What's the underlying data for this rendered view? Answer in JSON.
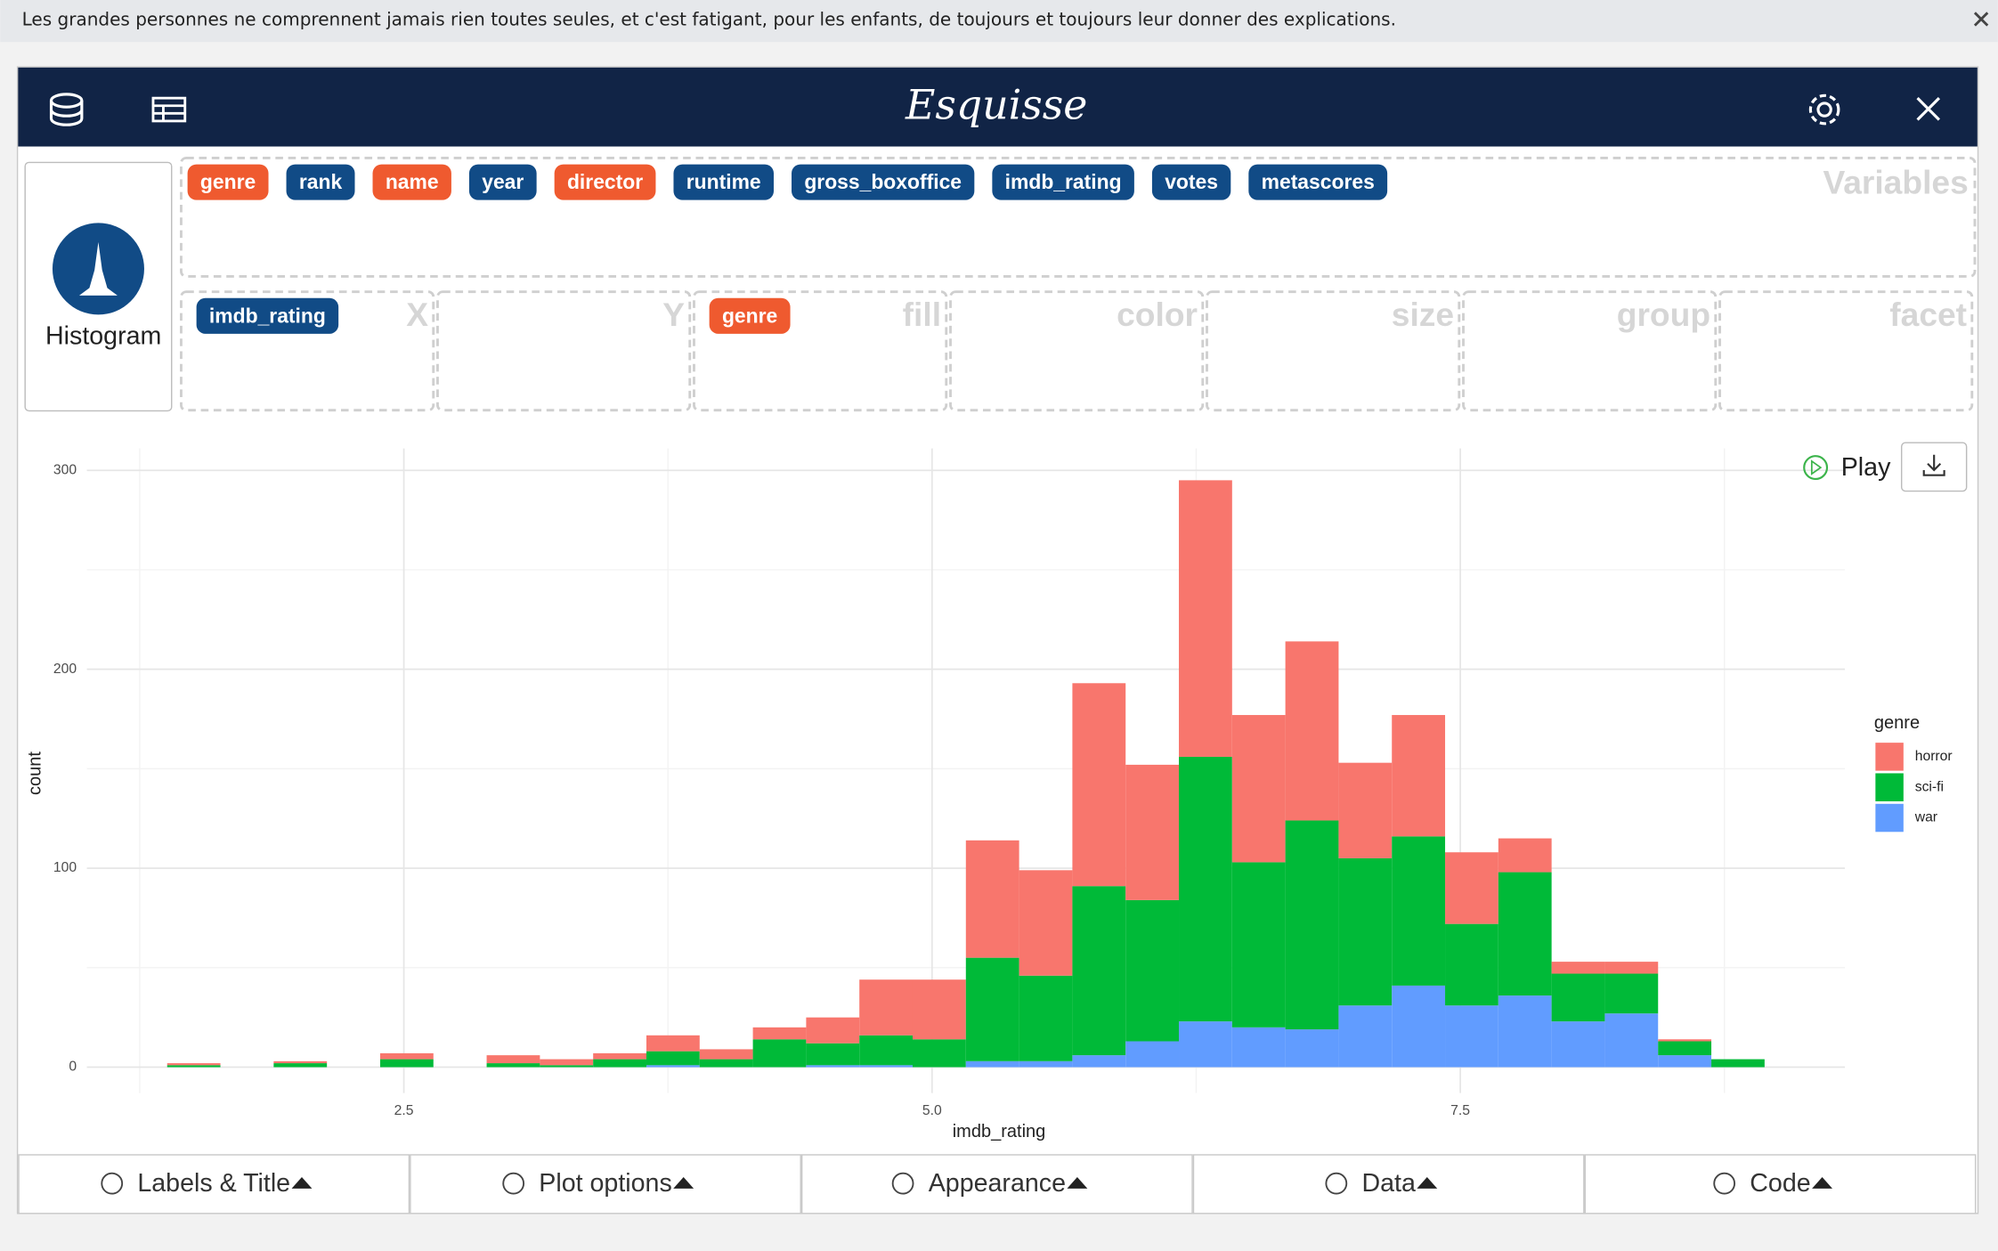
{
  "notification": "Les grandes personnes ne comprennent jamais rien toutes seules, et c'est fatigant, pour les enfants, de toujours et toujours leur donner des explications.",
  "header": {
    "title": "Esquisse"
  },
  "geom": "Histogram",
  "variables": {
    "label": "Variables",
    "items": [
      {
        "name": "genre",
        "color": "#ef5a2f"
      },
      {
        "name": "rank",
        "color": "#114b86"
      },
      {
        "name": "name",
        "color": "#ef5a2f"
      },
      {
        "name": "year",
        "color": "#114b86"
      },
      {
        "name": "director",
        "color": "#ef5a2f"
      },
      {
        "name": "runtime",
        "color": "#114b86"
      },
      {
        "name": "gross_boxoffice",
        "color": "#114b86"
      },
      {
        "name": "imdb_rating",
        "color": "#114b86"
      },
      {
        "name": "votes",
        "color": "#114b86"
      },
      {
        "name": "metascores",
        "color": "#114b86"
      }
    ]
  },
  "dropzones": [
    {
      "label": "X",
      "items": [
        {
          "name": "imdb_rating",
          "color": "#114b86"
        }
      ]
    },
    {
      "label": "Y",
      "items": []
    },
    {
      "label": "fill",
      "items": [
        {
          "name": "genre",
          "color": "#ef5a2f"
        }
      ]
    },
    {
      "label": "color",
      "items": []
    },
    {
      "label": "size",
      "items": []
    },
    {
      "label": "group",
      "items": []
    },
    {
      "label": "facet",
      "items": []
    }
  ],
  "play": "Play",
  "chart_data": {
    "type": "histogram",
    "xlabel": "imdb_rating",
    "ylabel": "count",
    "bins": [
      1.38,
      1.632,
      1.884,
      2.136,
      2.388,
      2.64,
      2.892,
      3.144,
      3.396,
      3.648,
      3.9,
      4.152,
      4.404,
      4.656,
      4.908,
      5.16,
      5.412,
      5.664,
      5.916,
      6.168,
      6.42,
      6.672,
      6.924,
      7.176,
      7.428,
      7.68,
      7.932,
      8.184,
      8.436,
      8.688,
      8.94
    ],
    "series": [
      {
        "name": "horror",
        "color": "#f8766d",
        "values": [
          1,
          0,
          1,
          0,
          3,
          0,
          4,
          3,
          3,
          8,
          5,
          6,
          13,
          28,
          30,
          59,
          53,
          102,
          68,
          139,
          74,
          90,
          48,
          61,
          36,
          17,
          6,
          6,
          1,
          0
        ]
      },
      {
        "name": "sci-fi",
        "color": "#00ba38",
        "values": [
          1,
          0,
          2,
          0,
          4,
          0,
          2,
          1,
          4,
          7,
          4,
          14,
          11,
          15,
          14,
          52,
          43,
          85,
          71,
          133,
          83,
          105,
          74,
          75,
          41,
          62,
          24,
          20,
          7,
          4
        ]
      },
      {
        "name": "war",
        "color": "#619cff",
        "values": [
          0,
          0,
          0,
          0,
          0,
          0,
          0,
          0,
          0,
          1,
          0,
          0,
          1,
          1,
          0,
          3,
          3,
          6,
          13,
          23,
          20,
          19,
          31,
          41,
          31,
          36,
          23,
          27,
          6,
          0
        ]
      }
    ],
    "xlim": [
      1.0,
      9.32
    ],
    "ylim": [
      -13,
      311
    ],
    "xticks": [
      2.5,
      {
        "value": 5.0,
        "label": "5.0"
      },
      7.5
    ],
    "yticks": [
      0,
      100,
      200,
      300
    ],
    "grid": true,
    "stacked": true,
    "legend": {
      "title": "genre",
      "position": "right"
    }
  },
  "buttons": [
    "Labels & Title",
    "Plot options",
    "Appearance",
    "Data",
    "Code"
  ]
}
